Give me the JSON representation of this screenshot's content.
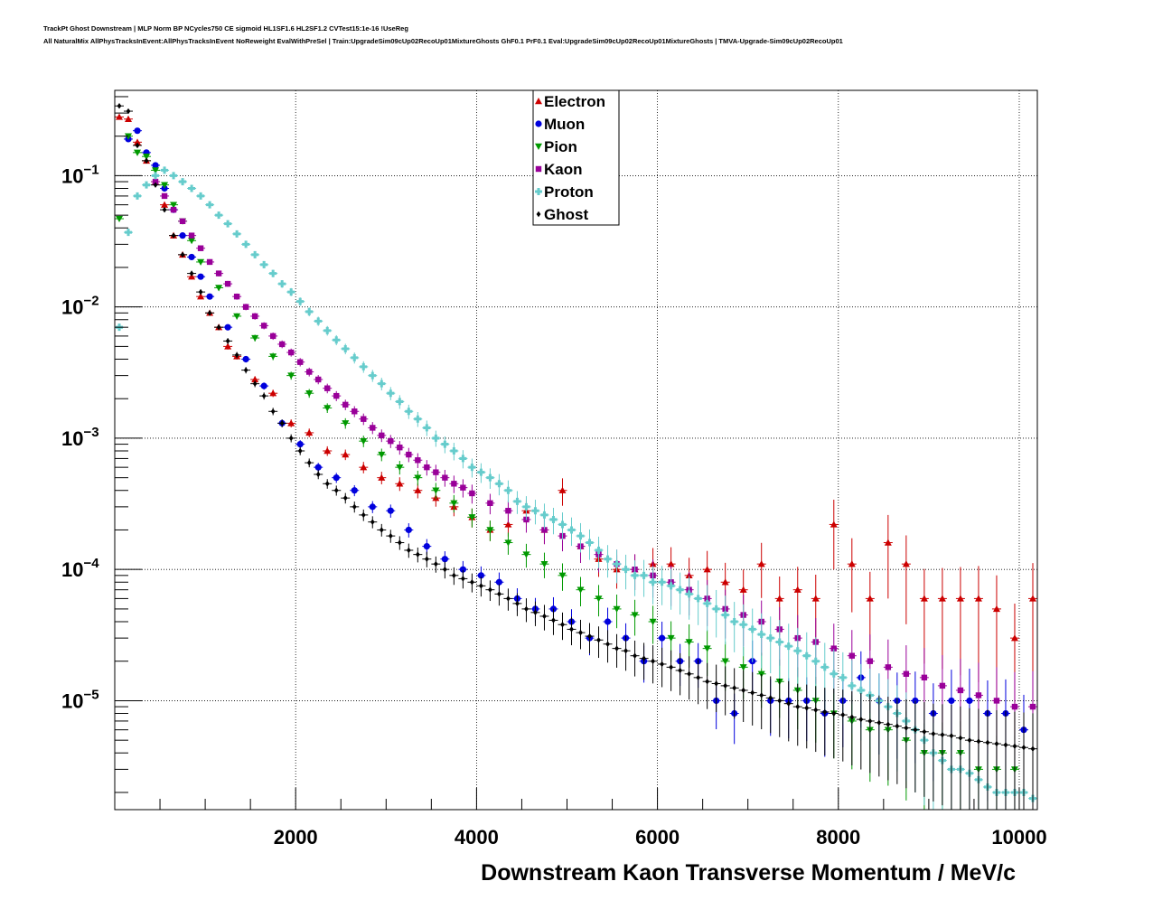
{
  "header": {
    "title_line1": "TrackPt Ghost Downstream | MLP Norm BP NCycles750 CE sigmoid HL1SF1.6 HL2SF1.2 CVTest15:1e-16 !UseReg",
    "title_line2": "All NaturalMix AllPhysTracksInEvent:AllPhysTracksInEvent NoReweight EvalWithPreSel | Train:UpgradeSim09cUp02RecoUp01MixtureGhosts GhF0.1 PrF0.1 Eval:UpgradeSim09cUp02RecoUp01MixtureGhosts | TMVA-Upgrade-Sim09cUp02RecoUp01"
  },
  "chart_data": {
    "type": "scatter",
    "xlabel": "Downstream Kaon Transverse Momentum / MeV/c",
    "ylabel": "",
    "xlim": [
      0,
      10200
    ],
    "ylim_log10": [
      -5.83,
      -0.35
    ],
    "y_scale": "log",
    "grid": true,
    "legend_position": "top-center",
    "x_ticks": [
      {
        "value": 2000,
        "label": "2000"
      },
      {
        "value": 4000,
        "label": "4000"
      },
      {
        "value": 6000,
        "label": "6000"
      },
      {
        "value": 8000,
        "label": "8000"
      },
      {
        "value": 10000,
        "label": "10000"
      }
    ],
    "y_ticks": [
      {
        "exp": -1,
        "base": "10",
        "sup": "−1"
      },
      {
        "exp": -2,
        "base": "10",
        "sup": "−2"
      },
      {
        "exp": -3,
        "base": "10",
        "sup": "−3"
      },
      {
        "exp": -4,
        "base": "10",
        "sup": "−4"
      },
      {
        "exp": -5,
        "base": "10",
        "sup": "−5"
      }
    ],
    "series": [
      {
        "name": "Electron",
        "color": "#cc0000",
        "marker": "triangle-up",
        "x": [
          50,
          150,
          250,
          350,
          450,
          550,
          650,
          750,
          850,
          950,
          1050,
          1150,
          1250,
          1350,
          1550,
          1750,
          1950,
          2150,
          2350,
          2550,
          2750,
          2950,
          3150,
          3350,
          3550,
          3750,
          3950,
          4150,
          4350,
          4550,
          4750,
          4950,
          5150,
          5350,
          5550,
          5750,
          5950,
          6150,
          6350,
          6550,
          6750,
          6950,
          7150,
          7350,
          7550,
          7750,
          7950,
          8150,
          8350,
          8550,
          8750,
          8950,
          9150,
          9350,
          9550,
          9750,
          9950,
          10150
        ],
        "y": [
          0.28,
          0.27,
          0.18,
          0.13,
          0.09,
          0.06,
          0.035,
          0.025,
          0.017,
          0.012,
          0.009,
          0.007,
          0.005,
          0.0042,
          0.0028,
          0.0022,
          0.0013,
          0.0011,
          0.0008,
          0.00075,
          0.0006,
          0.0005,
          0.00045,
          0.0004,
          0.00035,
          0.0003,
          0.00025,
          0.0002,
          0.00022,
          0.00028,
          0.0002,
          0.0004,
          0.00015,
          0.00012,
          0.0001,
          0.0001,
          0.00011,
          0.00011,
          9e-05,
          0.0001,
          8e-05,
          7e-05,
          0.00011,
          6e-05,
          7e-05,
          6e-05,
          0.00022,
          0.00011,
          6e-05,
          0.00016,
          0.00011,
          6e-05,
          6e-05,
          6e-05,
          6e-05,
          5e-05,
          3e-05,
          6e-05
        ]
      },
      {
        "name": "Muon",
        "color": "#0000dd",
        "marker": "circle",
        "x": [
          150,
          250,
          350,
          450,
          550,
          650,
          750,
          850,
          950,
          1050,
          1250,
          1450,
          1650,
          1850,
          2050,
          2250,
          2450,
          2650,
          2850,
          3050,
          3250,
          3450,
          3650,
          3850,
          4050,
          4250,
          4450,
          4650,
          4850,
          5050,
          5250,
          5450,
          5650,
          5850,
          6050,
          6250,
          6450,
          6650,
          6850,
          7050,
          7250,
          7450,
          7650,
          7850,
          8050,
          8250,
          8450,
          8650,
          8850,
          9050,
          9250,
          9450,
          9650,
          9850,
          10050
        ],
        "y": [
          0.19,
          0.22,
          0.15,
          0.12,
          0.08,
          0.055,
          0.035,
          0.024,
          0.017,
          0.012,
          0.007,
          0.004,
          0.0025,
          0.0013,
          0.0009,
          0.0006,
          0.0005,
          0.0004,
          0.0003,
          0.00028,
          0.0002,
          0.00015,
          0.00012,
          0.0001,
          9e-05,
          8e-05,
          6e-05,
          5e-05,
          5e-05,
          4e-05,
          3e-05,
          4e-05,
          3e-05,
          2e-05,
          3e-05,
          2e-05,
          2e-05,
          1e-05,
          8e-06,
          2e-05,
          1e-05,
          1e-05,
          1e-05,
          8e-06,
          1e-05,
          1.5e-05,
          1e-05,
          1e-05,
          1e-05,
          8e-06,
          1e-05,
          1e-05,
          8e-06,
          8e-06,
          6e-06
        ]
      },
      {
        "name": "Pion",
        "color": "#009900",
        "marker": "triangle-down",
        "x": [
          50,
          150,
          250,
          350,
          450,
          550,
          650,
          750,
          850,
          950,
          1150,
          1350,
          1550,
          1750,
          1950,
          2150,
          2350,
          2550,
          2750,
          2950,
          3150,
          3350,
          3550,
          3750,
          3950,
          4150,
          4350,
          4550,
          4750,
          4950,
          5150,
          5350,
          5550,
          5750,
          5950,
          6150,
          6350,
          6550,
          6750,
          6950,
          7150,
          7350,
          7550,
          7750,
          7950,
          8150,
          8350,
          8550,
          8750,
          8950,
          9150,
          9350,
          9550,
          9750,
          9950
        ],
        "y": [
          0.047,
          0.2,
          0.15,
          0.14,
          0.11,
          0.085,
          0.06,
          0.045,
          0.032,
          0.022,
          0.014,
          0.0085,
          0.0058,
          0.0042,
          0.003,
          0.0022,
          0.0017,
          0.0013,
          0.00095,
          0.00075,
          0.0006,
          0.0005,
          0.0004,
          0.00032,
          0.00025,
          0.0002,
          0.00016,
          0.00013,
          0.00011,
          9e-05,
          7e-05,
          6e-05,
          5e-05,
          4.5e-05,
          4e-05,
          3e-05,
          2.8e-05,
          2.5e-05,
          2e-05,
          1.8e-05,
          1.6e-05,
          1.4e-05,
          1.2e-05,
          1e-05,
          8e-06,
          7e-06,
          6e-06,
          6e-06,
          5e-06,
          4e-06,
          4e-06,
          4e-06,
          3e-06,
          3e-06,
          3e-06
        ]
      },
      {
        "name": "Kaon",
        "color": "#990099",
        "marker": "square",
        "x": [
          450,
          550,
          650,
          750,
          850,
          950,
          1050,
          1150,
          1250,
          1350,
          1450,
          1550,
          1650,
          1750,
          1850,
          1950,
          2050,
          2150,
          2250,
          2350,
          2450,
          2550,
          2650,
          2750,
          2850,
          2950,
          3050,
          3150,
          3250,
          3350,
          3450,
          3550,
          3650,
          3750,
          3850,
          3950,
          4150,
          4350,
          4550,
          4750,
          4950,
          5150,
          5350,
          5550,
          5750,
          5950,
          6150,
          6350,
          6550,
          6750,
          6950,
          7150,
          7350,
          7550,
          7750,
          7950,
          8150,
          8350,
          8550,
          8750,
          8950,
          9150,
          9350,
          9550,
          9750,
          9950,
          10150
        ],
        "y": [
          0.09,
          0.07,
          0.055,
          0.045,
          0.035,
          0.028,
          0.022,
          0.018,
          0.015,
          0.012,
          0.01,
          0.0085,
          0.0072,
          0.006,
          0.0052,
          0.0045,
          0.0038,
          0.0032,
          0.0028,
          0.0024,
          0.0021,
          0.0018,
          0.0016,
          0.0014,
          0.0012,
          0.00105,
          0.00095,
          0.00085,
          0.00075,
          0.00068,
          0.0006,
          0.00055,
          0.0005,
          0.00045,
          0.00042,
          0.00038,
          0.00032,
          0.00028,
          0.00024,
          0.0002,
          0.00018,
          0.00015,
          0.00013,
          0.00011,
          0.0001,
          9e-05,
          8e-05,
          7e-05,
          6e-05,
          5e-05,
          4.5e-05,
          4e-05,
          3.5e-05,
          3e-05,
          2.8e-05,
          2.5e-05,
          2.2e-05,
          2e-05,
          1.8e-05,
          1.6e-05,
          1.5e-05,
          1.3e-05,
          1.2e-05,
          1.1e-05,
          1e-05,
          9e-06,
          9e-06
        ]
      },
      {
        "name": "Proton",
        "color": "#66cccc",
        "marker": "cross",
        "x": [
          50,
          150,
          250,
          350,
          450,
          550,
          650,
          750,
          850,
          950,
          1050,
          1150,
          1250,
          1350,
          1450,
          1550,
          1650,
          1750,
          1850,
          1950,
          2050,
          2150,
          2250,
          2350,
          2450,
          2550,
          2650,
          2750,
          2850,
          2950,
          3050,
          3150,
          3250,
          3350,
          3450,
          3550,
          3650,
          3750,
          3850,
          3950,
          4050,
          4150,
          4250,
          4350,
          4450,
          4550,
          4650,
          4750,
          4850,
          4950,
          5050,
          5150,
          5250,
          5350,
          5450,
          5550,
          5650,
          5750,
          5850,
          5950,
          6050,
          6150,
          6250,
          6350,
          6450,
          6550,
          6650,
          6750,
          6850,
          6950,
          7050,
          7150,
          7250,
          7350,
          7450,
          7550,
          7650,
          7750,
          7850,
          7950,
          8050,
          8150,
          8250,
          8350,
          8450,
          8550,
          8650,
          8750,
          8850,
          8950,
          9050,
          9150,
          9250,
          9350,
          9450,
          9550,
          9650,
          9750,
          9850,
          9950,
          10050,
          10150
        ],
        "y": [
          0.007,
          0.037,
          0.07,
          0.085,
          0.1,
          0.11,
          0.1,
          0.09,
          0.08,
          0.07,
          0.06,
          0.05,
          0.043,
          0.036,
          0.03,
          0.025,
          0.021,
          0.018,
          0.015,
          0.013,
          0.011,
          0.0092,
          0.0078,
          0.0066,
          0.0056,
          0.0048,
          0.0041,
          0.0035,
          0.003,
          0.0026,
          0.0022,
          0.0019,
          0.0016,
          0.0014,
          0.0012,
          0.001,
          0.0009,
          0.0008,
          0.0007,
          0.0006,
          0.00055,
          0.0005,
          0.00045,
          0.0004,
          0.00033,
          0.0003,
          0.00028,
          0.00026,
          0.00024,
          0.00022,
          0.0002,
          0.00018,
          0.00016,
          0.00014,
          0.00012,
          0.00011,
          0.0001,
          9e-05,
          9e-05,
          8e-05,
          8e-05,
          7.5e-05,
          7e-05,
          6.5e-05,
          6e-05,
          5.5e-05,
          5e-05,
          4.5e-05,
          4e-05,
          3.8e-05,
          3.5e-05,
          3.2e-05,
          3e-05,
          2.8e-05,
          2.6e-05,
          2.4e-05,
          2.2e-05,
          2e-05,
          1.8e-05,
          1.6e-05,
          1.5e-05,
          1.3e-05,
          1.2e-05,
          1.1e-05,
          1e-05,
          9e-06,
          8e-06,
          7e-06,
          6e-06,
          5e-06,
          4e-06,
          3.5e-06,
          3e-06,
          3e-06,
          2.8e-06,
          2.5e-06,
          2.2e-06,
          2e-06,
          2e-06,
          2e-06,
          2e-06,
          1.8e-06
        ]
      },
      {
        "name": "Ghost",
        "color": "#000000",
        "marker": "diamond",
        "x": [
          50,
          150,
          250,
          350,
          450,
          550,
          650,
          750,
          850,
          950,
          1050,
          1150,
          1250,
          1350,
          1450,
          1550,
          1650,
          1750,
          1850,
          1950,
          2050,
          2150,
          2250,
          2350,
          2450,
          2550,
          2650,
          2750,
          2850,
          2950,
          3050,
          3150,
          3250,
          3350,
          3450,
          3550,
          3650,
          3750,
          3850,
          3950,
          4050,
          4150,
          4250,
          4350,
          4450,
          4550,
          4650,
          4750,
          4850,
          4950,
          5050,
          5150,
          5250,
          5350,
          5450,
          5550,
          5650,
          5750,
          5850,
          5950,
          6050,
          6150,
          6250,
          6350,
          6450,
          6550,
          6650,
          6750,
          6850,
          6950,
          7050,
          7150,
          7250,
          7350,
          7450,
          7550,
          7650,
          7750,
          7850,
          7950,
          8050,
          8150,
          8250,
          8350,
          8450,
          8550,
          8650,
          8750,
          8850,
          8950,
          9050,
          9150,
          9250,
          9350,
          9450,
          9550,
          9650,
          9750,
          9850,
          9950,
          10050,
          10150
        ],
        "y": [
          0.34,
          0.31,
          0.17,
          0.13,
          0.085,
          0.055,
          0.035,
          0.025,
          0.018,
          0.013,
          0.009,
          0.007,
          0.0055,
          0.0043,
          0.0033,
          0.0026,
          0.0021,
          0.0016,
          0.0013,
          0.001,
          0.0008,
          0.00065,
          0.00053,
          0.00045,
          0.0004,
          0.00035,
          0.0003,
          0.00026,
          0.00023,
          0.0002,
          0.00018,
          0.00016,
          0.00014,
          0.00013,
          0.00012,
          0.00011,
          0.0001,
          9e-05,
          8.5e-05,
          8e-05,
          7.5e-05,
          7e-05,
          6.5e-05,
          6e-05,
          5.5e-05,
          5e-05,
          4.7e-05,
          4.4e-05,
          4.1e-05,
          3.8e-05,
          3.5e-05,
          3.3e-05,
          3.1e-05,
          2.9e-05,
          2.7e-05,
          2.5e-05,
          2.4e-05,
          2.2e-05,
          2.1e-05,
          2e-05,
          1.9e-05,
          1.8e-05,
          1.7e-05,
          1.6e-05,
          1.5e-05,
          1.4e-05,
          1.35e-05,
          1.3e-05,
          1.25e-05,
          1.2e-05,
          1.15e-05,
          1.1e-05,
          1.05e-05,
          1e-05,
          9.5e-06,
          9e-06,
          8.8e-06,
          8.5e-06,
          8.2e-06,
          8e-06,
          7.8e-06,
          7.5e-06,
          7.2e-06,
          7e-06,
          6.8e-06,
          6.6e-06,
          6.4e-06,
          6.2e-06,
          6e-06,
          5.8e-06,
          5.6e-06,
          5.5e-06,
          5.4e-06,
          5.2e-06,
          5e-06,
          4.9e-06,
          4.8e-06,
          4.7e-06,
          4.6e-06,
          4.5e-06,
          4.4e-06,
          4.3e-06
        ]
      }
    ]
  }
}
